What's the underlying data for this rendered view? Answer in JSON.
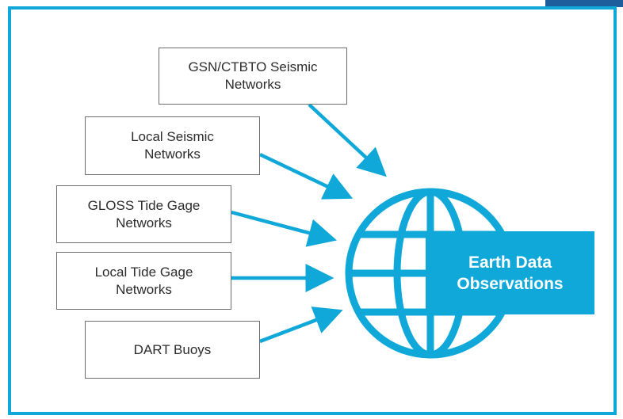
{
  "colors": {
    "accent": "#0fa8d9",
    "box_border": "#6d6d6d",
    "text": "#2c2c2c",
    "corner_tab": "#1f5e9c"
  },
  "sources": [
    {
      "label": "GSN/CTBTO Seismic\nNetworks"
    },
    {
      "label": "Local Seismic\nNetworks"
    },
    {
      "label": "GLOSS Tide Gage\nNetworks"
    },
    {
      "label": "Local Tide Gage\nNetworks"
    },
    {
      "label": "DART Buoys"
    }
  ],
  "target": {
    "line1": "Earth Data",
    "line2": "Observations",
    "icon": "globe-icon"
  }
}
